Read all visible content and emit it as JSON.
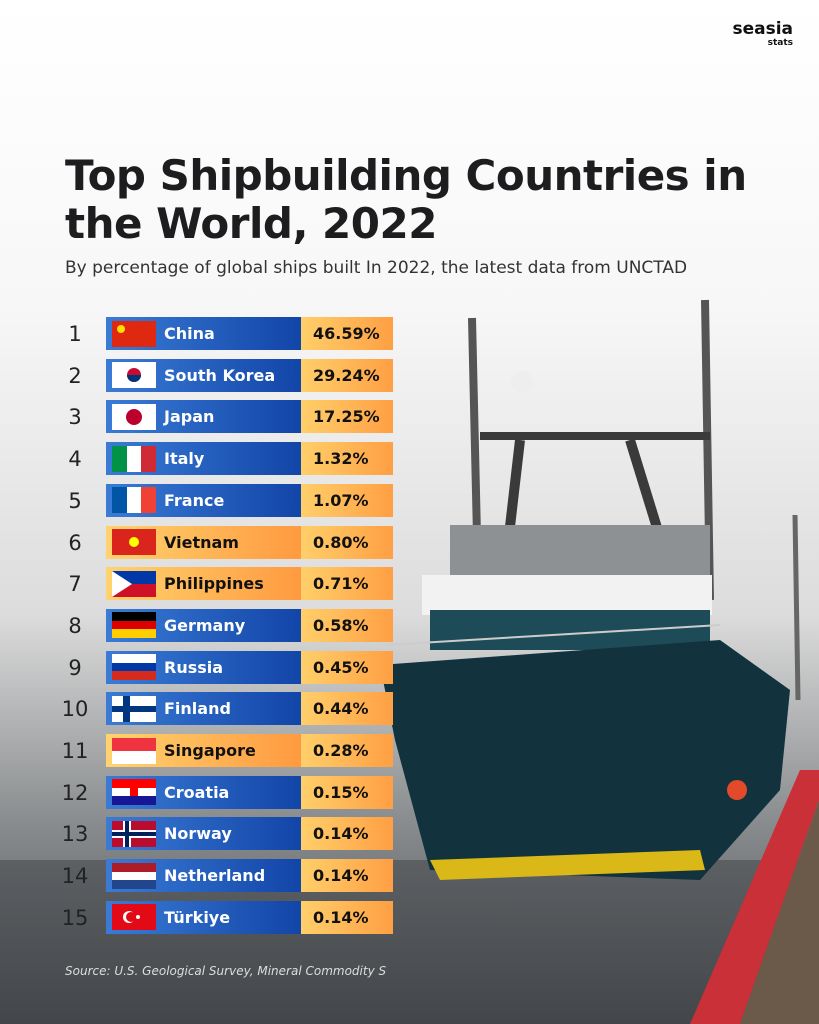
{
  "brand": {
    "name": "seasia",
    "sub": "stats"
  },
  "header": {
    "title": "Top Shipbuilding Countries in the World, 2022",
    "subtitle": "By percentage of global ships built In 2022, the latest data from UNCTAD"
  },
  "table": {
    "rows": [
      [
        "1",
        "China",
        "46.59%"
      ],
      [
        "2",
        "South Korea",
        "29.24%"
      ],
      [
        "3",
        "Japan",
        "17.25%"
      ],
      [
        "4",
        "Italy",
        "1.32%"
      ],
      [
        "5",
        "France",
        "1.07%"
      ],
      [
        "6",
        "Vietnam",
        "0.80%"
      ],
      [
        "7",
        "Philippines",
        "0.71%"
      ],
      [
        "8",
        "Germany",
        "0.58%"
      ],
      [
        "9",
        "Russia",
        "0.45%"
      ],
      [
        "10",
        "Finland",
        "0.44%"
      ],
      [
        "11",
        "Singapore",
        "0.28%"
      ],
      [
        "12",
        "Croatia",
        "0.15%"
      ],
      [
        "13",
        "Norway",
        "0.14%"
      ],
      [
        "14",
        "Netherland",
        "0.14%"
      ],
      [
        "15",
        "Türkiye",
        "0.14%"
      ]
    ]
  },
  "footer": {
    "source": "Source: U.S. Geological Survey, Mineral Commodity S"
  }
}
